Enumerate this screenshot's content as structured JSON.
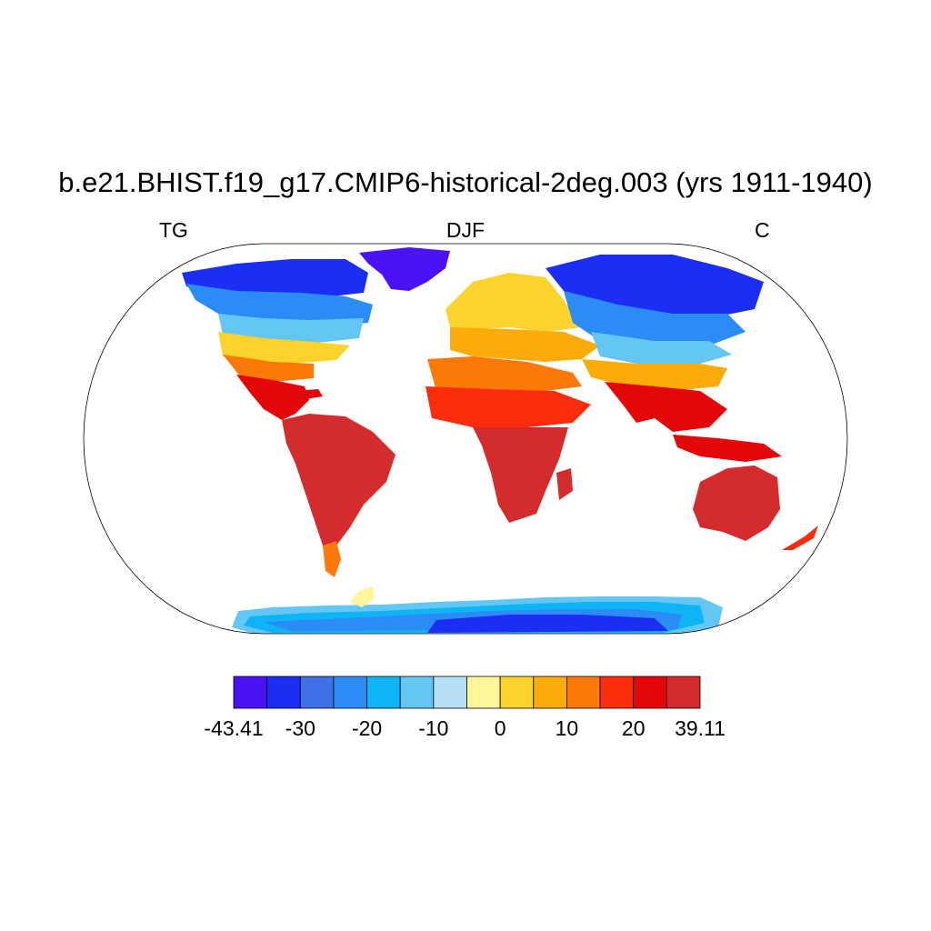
{
  "title": "b.e21.BHIST.f19_g17.CMIP6-historical-2deg.003 (yrs 1911-1940)",
  "subtitles": {
    "left": "TG",
    "center": "DJF",
    "right": "C"
  },
  "map": {
    "projection": "robinson",
    "variable_shown": "surface temperature, DJF mean"
  },
  "colorbar": {
    "min": -43.41,
    "max": 39.11,
    "colors": [
      "#4a12f5",
      "#1c2df4",
      "#4070e6",
      "#2a8cf4",
      "#0fb4f5",
      "#64c6f2",
      "#b6e0f5",
      "#fff59a",
      "#fcd22c",
      "#fcac08",
      "#fc7808",
      "#fc2d0d",
      "#e4070a",
      "#d42c2c"
    ],
    "labels": [
      {
        "text": "-43.41",
        "index": 0
      },
      {
        "text": "-30",
        "index": 2
      },
      {
        "text": "-20",
        "index": 4
      },
      {
        "text": "-10",
        "index": 6
      },
      {
        "text": "0",
        "index": 8
      },
      {
        "text": "10",
        "index": 10
      },
      {
        "text": "20",
        "index": 12
      },
      {
        "text": "39.11",
        "index": 14
      }
    ]
  }
}
